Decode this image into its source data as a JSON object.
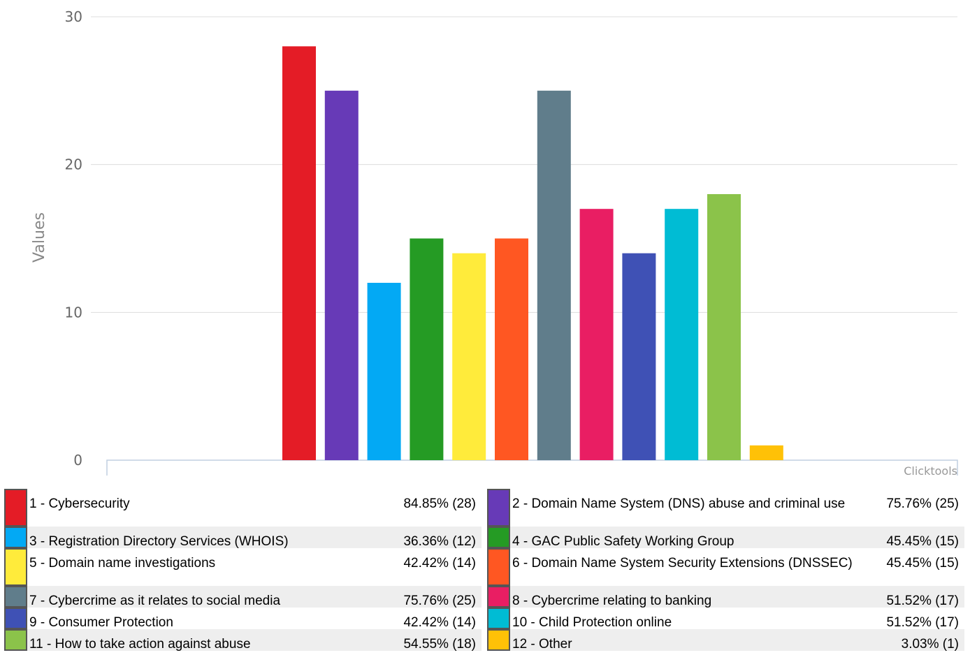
{
  "chart_data": {
    "type": "bar",
    "ylabel": "Values",
    "ylim": [
      0,
      30
    ],
    "yticks": [
      0,
      10,
      20,
      30
    ],
    "grid": true,
    "legend_position": "bottom",
    "credit": "Clicktools",
    "categories": [
      "1 - Cybersecurity",
      "2 - Domain Name System (DNS) abuse and criminal use",
      "3 - Registration Directory Services (WHOIS)",
      "4 - GAC Public Safety Working Group",
      "5 - Domain name investigations",
      "6 - Domain Name System Security Extensions (DNSSEC)",
      "7 - Cybercrime as it relates to social media",
      "8 - Cybercrime relating to banking",
      "9 - Consumer Protection",
      "10 - Child Protection online",
      "11 - How to take action against abuse",
      "12 - Other"
    ],
    "values": [
      28,
      25,
      12,
      15,
      14,
      15,
      25,
      17,
      14,
      17,
      18,
      1
    ],
    "percent_labels": [
      "84.85% (28)",
      "75.76% (25)",
      "36.36% (12)",
      "45.45% (15)",
      "42.42% (14)",
      "45.45% (15)",
      "75.76% (25)",
      "51.52% (17)",
      "42.42% (14)",
      "51.52% (17)",
      "54.55% (18)",
      "3.03% (1)"
    ],
    "colors": [
      "#e41c26",
      "#673ab7",
      "#03a9f4",
      "#259b24",
      "#ffeb3b",
      "#ff5722",
      "#607d8b",
      "#e91e63",
      "#3f51b5",
      "#00bcd4",
      "#8bc34a",
      "#ffc107"
    ]
  }
}
